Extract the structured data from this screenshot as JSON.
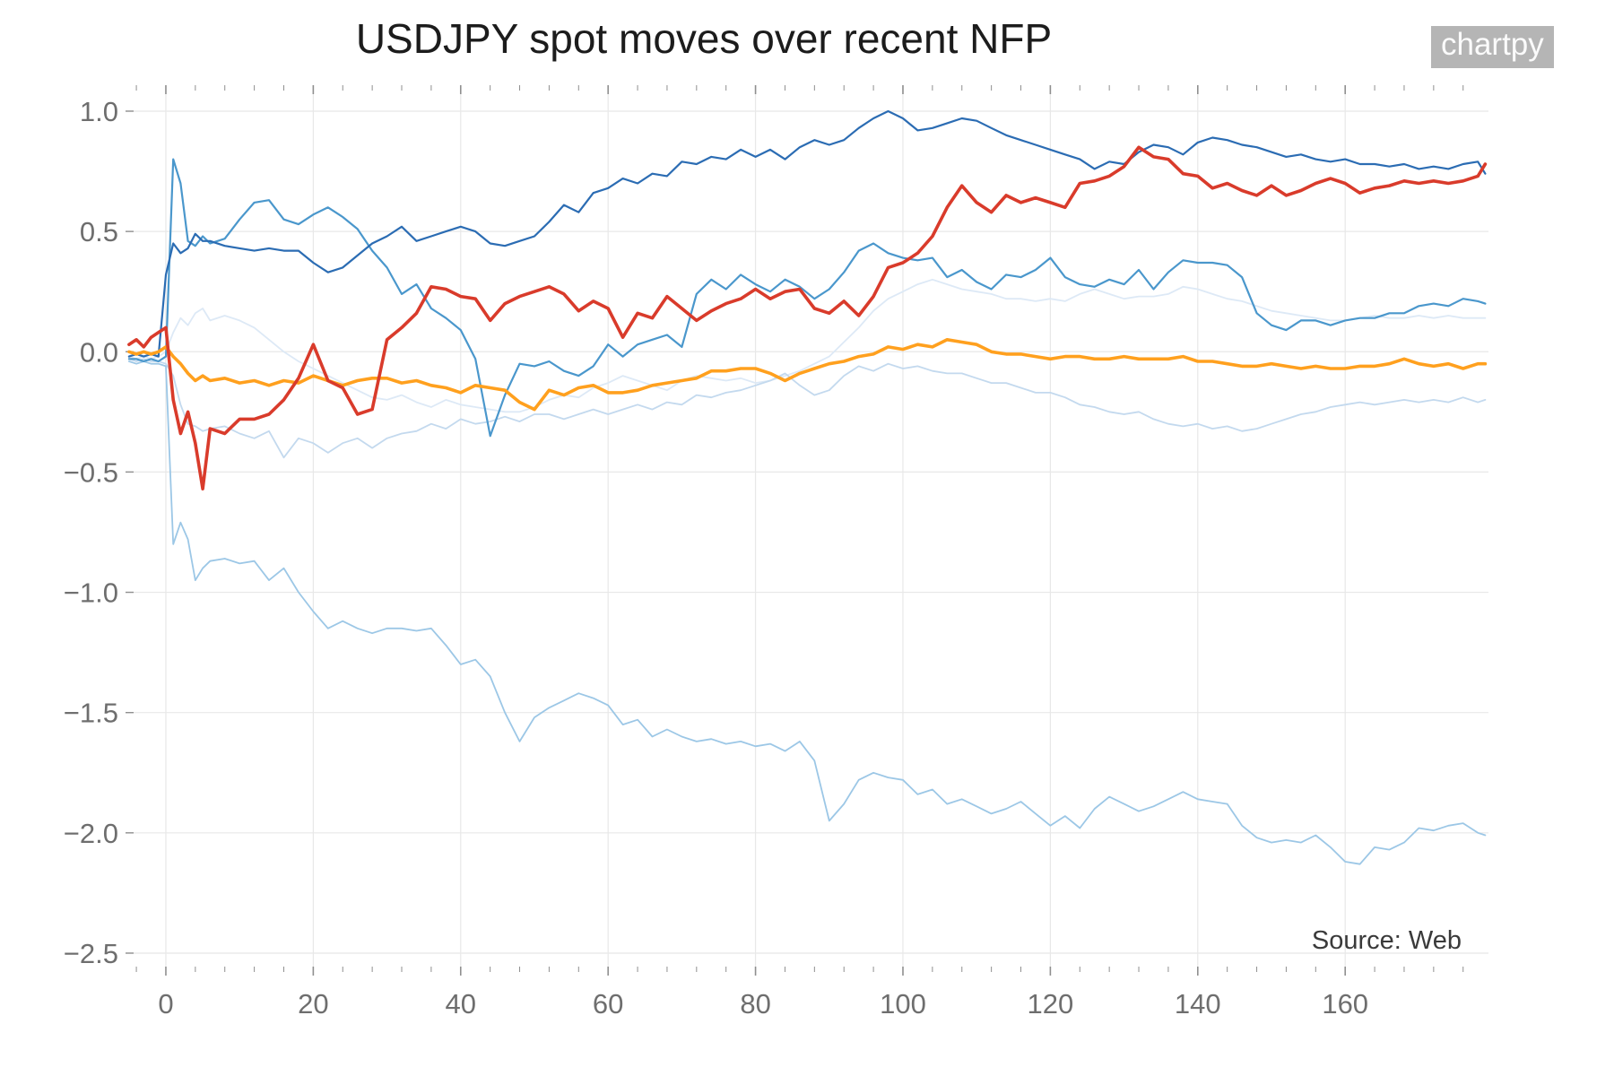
{
  "page": {
    "title": "USDJPY spot moves over recent NFP",
    "watermark": "chartpy",
    "source": "Source: Web"
  },
  "chart_data": {
    "type": "line",
    "title": "USDJPY spot moves over recent NFP",
    "xlabel": "",
    "ylabel": "",
    "grid": true,
    "legend_position": "none",
    "xlim": [
      -5.47,
      179.44
    ],
    "ylim": [
      -2.556,
      1.108
    ],
    "x_ticks": [
      0,
      20,
      40,
      60,
      80,
      100,
      120,
      140,
      160
    ],
    "x_tick_labels": [
      "0",
      "20",
      "40",
      "60",
      "80",
      "100",
      "120",
      "140",
      "160"
    ],
    "x_minor_tick_start": -4,
    "x_minor_tick_step": 4,
    "x_minor_tick_end": 176,
    "y_ticks": [
      1.0,
      0.5,
      0.0,
      -0.5,
      -1.0,
      -1.5,
      -2.0,
      -2.5
    ],
    "y_tick_labels": [
      "1.0",
      "0.5",
      "0.0",
      "−0.5",
      "−1.0",
      "−1.5",
      "−2.0",
      "−2.5"
    ],
    "colors": {
      "grid": "#e8e8e8",
      "ticks": "#8f8f8f",
      "tick_labels": "#6e6e6e",
      "title": "#1c1c1c",
      "watermark_bg": "#b5b5b5",
      "watermark_text": "#fbfbfb"
    },
    "x": [
      -5,
      -4,
      -3,
      -2,
      -1,
      0,
      1,
      2,
      3,
      4,
      5,
      6,
      8,
      10,
      12,
      14,
      16,
      18,
      20,
      22,
      24,
      26,
      28,
      30,
      32,
      34,
      36,
      38,
      40,
      42,
      44,
      46,
      48,
      50,
      52,
      54,
      56,
      58,
      60,
      62,
      64,
      66,
      68,
      70,
      72,
      74,
      76,
      78,
      80,
      82,
      84,
      86,
      88,
      90,
      92,
      94,
      96,
      98,
      100,
      102,
      104,
      106,
      108,
      110,
      112,
      114,
      116,
      118,
      120,
      122,
      124,
      126,
      128,
      130,
      132,
      134,
      136,
      138,
      140,
      142,
      144,
      146,
      148,
      150,
      152,
      154,
      156,
      158,
      160,
      162,
      164,
      166,
      168,
      170,
      172,
      174,
      176,
      178,
      179
    ],
    "series": [
      {
        "name": "line-palest-blue",
        "color": "#dde9f6",
        "width": 1.8,
        "values": [
          -0.02,
          -0.03,
          -0.02,
          -0.03,
          -0.02,
          0.0,
          0.08,
          0.14,
          0.11,
          0.16,
          0.18,
          0.13,
          0.15,
          0.13,
          0.1,
          0.05,
          0.0,
          -0.04,
          -0.07,
          -0.1,
          -0.13,
          -0.16,
          -0.19,
          -0.2,
          -0.18,
          -0.21,
          -0.23,
          -0.2,
          -0.22,
          -0.23,
          -0.24,
          -0.25,
          -0.25,
          -0.23,
          -0.2,
          -0.18,
          -0.19,
          -0.15,
          -0.13,
          -0.1,
          -0.12,
          -0.14,
          -0.16,
          -0.12,
          -0.1,
          -0.11,
          -0.12,
          -0.11,
          -0.13,
          -0.12,
          -0.1,
          -0.08,
          -0.05,
          -0.02,
          0.04,
          0.1,
          0.17,
          0.22,
          0.25,
          0.28,
          0.3,
          0.28,
          0.26,
          0.25,
          0.24,
          0.22,
          0.22,
          0.21,
          0.22,
          0.21,
          0.24,
          0.26,
          0.24,
          0.22,
          0.23,
          0.23,
          0.24,
          0.27,
          0.26,
          0.24,
          0.22,
          0.21,
          0.19,
          0.17,
          0.16,
          0.15,
          0.14,
          0.13,
          0.13,
          0.14,
          0.15,
          0.14,
          0.14,
          0.15,
          0.14,
          0.15,
          0.14,
          0.14,
          0.14
        ]
      },
      {
        "name": "line-pale-blue",
        "color": "#c3d9ee",
        "width": 1.8,
        "values": [
          -0.03,
          -0.04,
          -0.03,
          -0.04,
          -0.04,
          -0.05,
          -0.1,
          -0.22,
          -0.3,
          -0.31,
          -0.33,
          -0.32,
          -0.31,
          -0.34,
          -0.36,
          -0.33,
          -0.44,
          -0.36,
          -0.38,
          -0.42,
          -0.38,
          -0.36,
          -0.4,
          -0.36,
          -0.34,
          -0.33,
          -0.3,
          -0.32,
          -0.28,
          -0.3,
          -0.29,
          -0.27,
          -0.29,
          -0.26,
          -0.26,
          -0.28,
          -0.26,
          -0.24,
          -0.26,
          -0.24,
          -0.22,
          -0.24,
          -0.21,
          -0.22,
          -0.18,
          -0.19,
          -0.17,
          -0.16,
          -0.14,
          -0.12,
          -0.09,
          -0.14,
          -0.18,
          -0.16,
          -0.1,
          -0.06,
          -0.08,
          -0.05,
          -0.07,
          -0.06,
          -0.08,
          -0.09,
          -0.09,
          -0.11,
          -0.13,
          -0.13,
          -0.15,
          -0.17,
          -0.17,
          -0.19,
          -0.22,
          -0.23,
          -0.25,
          -0.26,
          -0.25,
          -0.28,
          -0.3,
          -0.31,
          -0.3,
          -0.32,
          -0.31,
          -0.33,
          -0.32,
          -0.3,
          -0.28,
          -0.26,
          -0.25,
          -0.23,
          -0.22,
          -0.21,
          -0.22,
          -0.21,
          -0.2,
          -0.21,
          -0.2,
          -0.21,
          -0.19,
          -0.21,
          -0.2
        ]
      },
      {
        "name": "line-light-blue",
        "color": "#9cc7e6",
        "width": 1.8,
        "values": [
          -0.04,
          -0.05,
          -0.04,
          -0.05,
          -0.05,
          -0.06,
          -0.8,
          -0.71,
          -0.78,
          -0.95,
          -0.9,
          -0.87,
          -0.86,
          -0.88,
          -0.87,
          -0.95,
          -0.9,
          -1.0,
          -1.08,
          -1.15,
          -1.12,
          -1.15,
          -1.17,
          -1.15,
          -1.15,
          -1.16,
          -1.15,
          -1.22,
          -1.3,
          -1.28,
          -1.35,
          -1.5,
          -1.62,
          -1.52,
          -1.48,
          -1.45,
          -1.42,
          -1.44,
          -1.47,
          -1.55,
          -1.53,
          -1.6,
          -1.57,
          -1.6,
          -1.62,
          -1.61,
          -1.63,
          -1.62,
          -1.64,
          -1.63,
          -1.66,
          -1.62,
          -1.7,
          -1.95,
          -1.88,
          -1.78,
          -1.75,
          -1.77,
          -1.78,
          -1.84,
          -1.82,
          -1.88,
          -1.86,
          -1.89,
          -1.92,
          -1.9,
          -1.87,
          -1.92,
          -1.97,
          -1.93,
          -1.98,
          -1.9,
          -1.85,
          -1.88,
          -1.91,
          -1.89,
          -1.86,
          -1.83,
          -1.86,
          -1.87,
          -1.88,
          -1.97,
          -2.02,
          -2.04,
          -2.03,
          -2.04,
          -2.01,
          -2.06,
          -2.12,
          -2.13,
          -2.06,
          -2.07,
          -2.04,
          -1.98,
          -1.99,
          -1.97,
          -1.96,
          -2.0,
          -2.01
        ]
      },
      {
        "name": "line-steel-blue",
        "color": "#4a97cc",
        "width": 2.2,
        "values": [
          -0.03,
          -0.03,
          -0.04,
          -0.03,
          -0.04,
          -0.02,
          0.8,
          0.7,
          0.46,
          0.44,
          0.48,
          0.45,
          0.47,
          0.55,
          0.62,
          0.63,
          0.55,
          0.53,
          0.57,
          0.6,
          0.56,
          0.51,
          0.42,
          0.35,
          0.24,
          0.28,
          0.18,
          0.14,
          0.09,
          -0.03,
          -0.35,
          -0.18,
          -0.05,
          -0.06,
          -0.04,
          -0.08,
          -0.1,
          -0.06,
          0.03,
          -0.02,
          0.03,
          0.05,
          0.07,
          0.02,
          0.24,
          0.3,
          0.26,
          0.32,
          0.28,
          0.25,
          0.3,
          0.27,
          0.22,
          0.26,
          0.33,
          0.42,
          0.45,
          0.41,
          0.39,
          0.38,
          0.39,
          0.31,
          0.34,
          0.29,
          0.26,
          0.32,
          0.31,
          0.34,
          0.39,
          0.31,
          0.28,
          0.27,
          0.3,
          0.28,
          0.34,
          0.26,
          0.33,
          0.38,
          0.37,
          0.37,
          0.36,
          0.31,
          0.16,
          0.11,
          0.09,
          0.13,
          0.13,
          0.11,
          0.13,
          0.14,
          0.14,
          0.16,
          0.16,
          0.19,
          0.2,
          0.19,
          0.22,
          0.21,
          0.2
        ]
      },
      {
        "name": "line-dark-blue",
        "color": "#2b6cb3",
        "width": 2.2,
        "values": [
          -0.02,
          -0.01,
          -0.02,
          -0.01,
          -0.02,
          0.32,
          0.45,
          0.41,
          0.43,
          0.49,
          0.46,
          0.46,
          0.44,
          0.43,
          0.42,
          0.43,
          0.42,
          0.42,
          0.37,
          0.33,
          0.35,
          0.4,
          0.45,
          0.48,
          0.52,
          0.46,
          0.48,
          0.5,
          0.52,
          0.5,
          0.45,
          0.44,
          0.46,
          0.48,
          0.54,
          0.61,
          0.58,
          0.66,
          0.68,
          0.72,
          0.7,
          0.74,
          0.73,
          0.79,
          0.78,
          0.81,
          0.8,
          0.84,
          0.81,
          0.84,
          0.8,
          0.85,
          0.88,
          0.86,
          0.88,
          0.93,
          0.97,
          1.0,
          0.97,
          0.92,
          0.93,
          0.95,
          0.97,
          0.96,
          0.93,
          0.9,
          0.88,
          0.86,
          0.84,
          0.82,
          0.8,
          0.76,
          0.79,
          0.78,
          0.83,
          0.86,
          0.85,
          0.82,
          0.87,
          0.89,
          0.88,
          0.86,
          0.85,
          0.83,
          0.81,
          0.82,
          0.8,
          0.79,
          0.8,
          0.78,
          0.78,
          0.77,
          0.78,
          0.76,
          0.77,
          0.76,
          0.78,
          0.79,
          0.74
        ]
      },
      {
        "name": "line-orange",
        "color": "#ffa01e",
        "width": 3.6,
        "values": [
          0.0,
          -0.01,
          0.0,
          -0.01,
          0.0,
          0.02,
          -0.02,
          -0.05,
          -0.09,
          -0.12,
          -0.1,
          -0.12,
          -0.11,
          -0.13,
          -0.12,
          -0.14,
          -0.12,
          -0.13,
          -0.1,
          -0.12,
          -0.14,
          -0.12,
          -0.11,
          -0.11,
          -0.13,
          -0.12,
          -0.14,
          -0.15,
          -0.17,
          -0.14,
          -0.15,
          -0.16,
          -0.21,
          -0.24,
          -0.16,
          -0.18,
          -0.15,
          -0.14,
          -0.17,
          -0.17,
          -0.16,
          -0.14,
          -0.13,
          -0.12,
          -0.11,
          -0.08,
          -0.08,
          -0.07,
          -0.07,
          -0.09,
          -0.12,
          -0.09,
          -0.07,
          -0.05,
          -0.04,
          -0.02,
          -0.01,
          0.02,
          0.01,
          0.03,
          0.02,
          0.05,
          0.04,
          0.03,
          0.0,
          -0.01,
          -0.01,
          -0.02,
          -0.03,
          -0.02,
          -0.02,
          -0.03,
          -0.03,
          -0.02,
          -0.03,
          -0.03,
          -0.03,
          -0.02,
          -0.04,
          -0.04,
          -0.05,
          -0.06,
          -0.06,
          -0.05,
          -0.06,
          -0.07,
          -0.06,
          -0.07,
          -0.07,
          -0.06,
          -0.06,
          -0.05,
          -0.03,
          -0.05,
          -0.06,
          -0.05,
          -0.07,
          -0.05,
          -0.05
        ]
      },
      {
        "name": "line-red",
        "color": "#d93b2b",
        "width": 3.6,
        "values": [
          0.03,
          0.05,
          0.02,
          0.06,
          0.08,
          0.1,
          -0.2,
          -0.34,
          -0.25,
          -0.38,
          -0.57,
          -0.32,
          -0.34,
          -0.28,
          -0.28,
          -0.26,
          -0.2,
          -0.11,
          0.03,
          -0.12,
          -0.15,
          -0.26,
          -0.24,
          0.05,
          0.1,
          0.16,
          0.27,
          0.26,
          0.23,
          0.22,
          0.13,
          0.2,
          0.23,
          0.25,
          0.27,
          0.24,
          0.17,
          0.21,
          0.18,
          0.06,
          0.16,
          0.14,
          0.23,
          0.18,
          0.13,
          0.17,
          0.2,
          0.22,
          0.26,
          0.22,
          0.25,
          0.26,
          0.18,
          0.16,
          0.21,
          0.15,
          0.23,
          0.35,
          0.37,
          0.41,
          0.48,
          0.6,
          0.69,
          0.62,
          0.58,
          0.65,
          0.62,
          0.64,
          0.62,
          0.6,
          0.7,
          0.71,
          0.73,
          0.77,
          0.85,
          0.81,
          0.8,
          0.74,
          0.73,
          0.68,
          0.7,
          0.67,
          0.65,
          0.69,
          0.65,
          0.67,
          0.7,
          0.72,
          0.7,
          0.66,
          0.68,
          0.69,
          0.71,
          0.7,
          0.71,
          0.7,
          0.71,
          0.73,
          0.78
        ]
      }
    ]
  }
}
